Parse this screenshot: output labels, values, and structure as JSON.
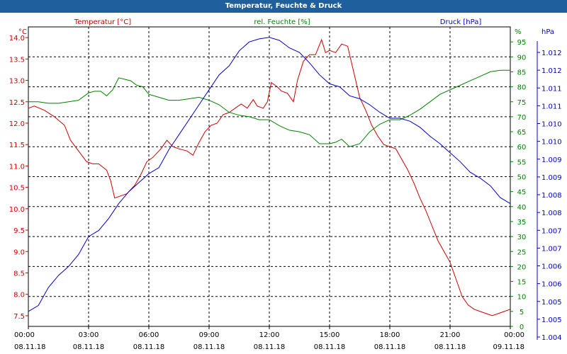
{
  "window": {
    "title": "Temperatur, Feuchte & Druck"
  },
  "colors": {
    "temp": "#cc0000",
    "hum": "#008000",
    "press": "#0000cc",
    "title_bg": "#1f5f9e"
  },
  "chart_data": {
    "type": "line",
    "title": "Temperatur, Feuchte & Druck",
    "grid": true,
    "x_ticks": [
      {
        "time": "00:00",
        "date": "08.11.18"
      },
      {
        "time": "03:00",
        "date": "08.11.18"
      },
      {
        "time": "06:00",
        "date": "08.11.18"
      },
      {
        "time": "09:00",
        "date": "08.11.18"
      },
      {
        "time": "12:00",
        "date": "08.11.18"
      },
      {
        "time": "15:00",
        "date": "08.11.18"
      },
      {
        "time": "18:00",
        "date": "08.11.18"
      },
      {
        "time": "21:00",
        "date": "08.11.18"
      },
      {
        "time": "00:00",
        "date": "09.11.18"
      }
    ],
    "x_range_hours": [
      0,
      24
    ],
    "axes": {
      "temp": {
        "label": "Temperatur [°C]",
        "unit": "°C",
        "min": 7.25,
        "max": 14.25,
        "tick_values": [
          7.5,
          8.0,
          8.5,
          9.0,
          9.5,
          10.0,
          10.5,
          11.0,
          11.5,
          12.0,
          12.5,
          13.0,
          13.5,
          14.0
        ],
        "tick_labels": [
          "7.5",
          "8.0",
          "8.5",
          "9.0",
          "9.5",
          "10.0",
          "10.5",
          "11.0",
          "11.5",
          "12.0",
          "12.5",
          "13.0",
          "13.5",
          "14.0"
        ]
      },
      "hum": {
        "label": "rel. Feuchte [%]",
        "unit": "%",
        "min": 0,
        "max": 100,
        "tick_values": [
          0,
          5,
          10,
          15,
          20,
          25,
          30,
          35,
          40,
          45,
          50,
          55,
          60,
          65,
          70,
          75,
          80,
          85,
          90,
          95
        ],
        "tick_labels": [
          "0",
          "5",
          "10",
          "15",
          "20",
          "25",
          "30",
          "35",
          "40",
          "45",
          "50",
          "55",
          "60",
          "65",
          "70",
          "75",
          "80",
          "85",
          "90",
          "95"
        ]
      },
      "press": {
        "label": "Druck [hPa]",
        "unit": "hPa",
        "tick_labels": [
          "1.004",
          "1.005",
          "1.005",
          "1.006",
          "1.006",
          "1.007",
          "1.007",
          "1.008",
          "1.008",
          "1.009",
          "1.009",
          "1.010",
          "1.010",
          "1.011",
          "1.011",
          "1.012",
          "1.012"
        ]
      }
    },
    "series": [
      {
        "name": "Temperatur [°C]",
        "axis": "temp",
        "x": [
          0,
          0.3,
          0.8,
          1.3,
          1.8,
          2.1,
          2.5,
          2.9,
          3.2,
          3.5,
          3.9,
          4.1,
          4.3,
          4.6,
          4.9,
          5.3,
          5.6,
          5.9,
          6.2,
          6.6,
          6.9,
          7.2,
          7.5,
          7.9,
          8.2,
          8.5,
          8.8,
          9.1,
          9.4,
          9.7,
          10.0,
          10.3,
          10.6,
          10.9,
          11.2,
          11.4,
          11.7,
          11.9,
          12.1,
          12.4,
          12.6,
          12.9,
          13.2,
          13.4,
          13.7,
          14.0,
          14.3,
          14.6,
          14.8,
          15.0,
          15.3,
          15.6,
          15.9,
          16.2,
          16.5,
          16.8,
          17.1,
          17.4,
          17.7,
          18.0,
          18.3,
          18.6,
          18.9,
          19.2,
          19.5,
          19.8,
          20.1,
          20.4,
          20.7,
          21.0,
          21.3,
          21.6,
          21.9,
          22.2,
          22.5,
          22.8,
          23.1,
          23.4,
          23.7,
          24.0
        ],
        "values": [
          12.35,
          12.4,
          12.3,
          12.15,
          11.95,
          11.6,
          11.35,
          11.1,
          11.05,
          11.05,
          10.9,
          10.65,
          10.25,
          10.3,
          10.35,
          10.55,
          10.8,
          11.1,
          11.2,
          11.4,
          11.6,
          11.45,
          11.4,
          11.35,
          11.25,
          11.55,
          11.8,
          11.95,
          12.0,
          12.2,
          12.25,
          12.35,
          12.45,
          12.35,
          12.55,
          12.4,
          12.35,
          12.5,
          12.95,
          12.85,
          12.75,
          12.7,
          12.5,
          13.0,
          13.45,
          13.6,
          13.6,
          13.95,
          13.65,
          13.7,
          13.65,
          13.85,
          13.8,
          13.2,
          12.6,
          12.3,
          11.95,
          11.7,
          11.5,
          11.45,
          11.4,
          11.15,
          10.9,
          10.6,
          10.25,
          9.95,
          9.6,
          9.25,
          9.0,
          8.75,
          8.35,
          7.95,
          7.75,
          7.65,
          7.6,
          7.55,
          7.5,
          7.55,
          7.6,
          7.65
        ]
      },
      {
        "name": "rel. Feuchte [%]",
        "axis": "hum",
        "x": [
          0,
          0.5,
          1.0,
          1.5,
          2.0,
          2.5,
          3.0,
          3.3,
          3.6,
          3.9,
          4.2,
          4.5,
          4.8,
          5.1,
          5.4,
          5.7,
          6.0,
          6.5,
          7.0,
          7.5,
          8.0,
          8.5,
          9.0,
          9.5,
          10.0,
          10.5,
          11.0,
          11.5,
          12.0,
          12.5,
          13.0,
          13.5,
          14.0,
          14.5,
          15.0,
          15.3,
          15.6,
          16.0,
          16.5,
          17.0,
          17.5,
          18.0,
          18.5,
          19.0,
          19.5,
          20.0,
          20.5,
          21.0,
          21.5,
          22.0,
          22.5,
          23.0,
          23.5,
          24.0
        ],
        "values": [
          75,
          75,
          74.5,
          74.5,
          75,
          75.5,
          78,
          78.5,
          78.5,
          77,
          79,
          83,
          82.5,
          82,
          80.5,
          80,
          77.5,
          76.5,
          75.5,
          75.5,
          76,
          76.5,
          75.5,
          74,
          71.5,
          70.5,
          70,
          69,
          69,
          67,
          65.5,
          65,
          64,
          61,
          61,
          61.5,
          62.5,
          60,
          61,
          65,
          67.5,
          69,
          69,
          70.5,
          72.5,
          75,
          77.5,
          79,
          80.5,
          82,
          83.5,
          85,
          85.5,
          85.5
        ]
      },
      {
        "name": "Druck [hPa]",
        "axis": "press",
        "x": [
          0,
          0.5,
          1.0,
          1.5,
          2.0,
          2.5,
          3.0,
          3.5,
          4.0,
          4.5,
          5.0,
          5.5,
          6.0,
          6.5,
          7.0,
          7.5,
          8.0,
          8.5,
          9.0,
          9.5,
          10.0,
          10.5,
          11.0,
          11.5,
          12.0,
          12.5,
          13.0,
          13.5,
          14.0,
          14.5,
          15.0,
          15.5,
          16.0,
          16.5,
          17.0,
          17.5,
          18.0,
          18.5,
          19.0,
          19.5,
          20.0,
          20.5,
          21.0,
          21.5,
          22.0,
          22.5,
          23.0,
          23.5,
          24.0
        ],
        "values": [
          5,
          7,
          13,
          17,
          20,
          24,
          30,
          32,
          36,
          41,
          45,
          48,
          51,
          53,
          59,
          64,
          69,
          74,
          79,
          84,
          87,
          92,
          95,
          96,
          96.5,
          95.5,
          93,
          91.5,
          88,
          84,
          81,
          80,
          77,
          76,
          74,
          71.5,
          69.5,
          69.5,
          68.5,
          66.5,
          63.5,
          61,
          58,
          55,
          51.5,
          49.5,
          47,
          43,
          41
        ]
      }
    ]
  }
}
